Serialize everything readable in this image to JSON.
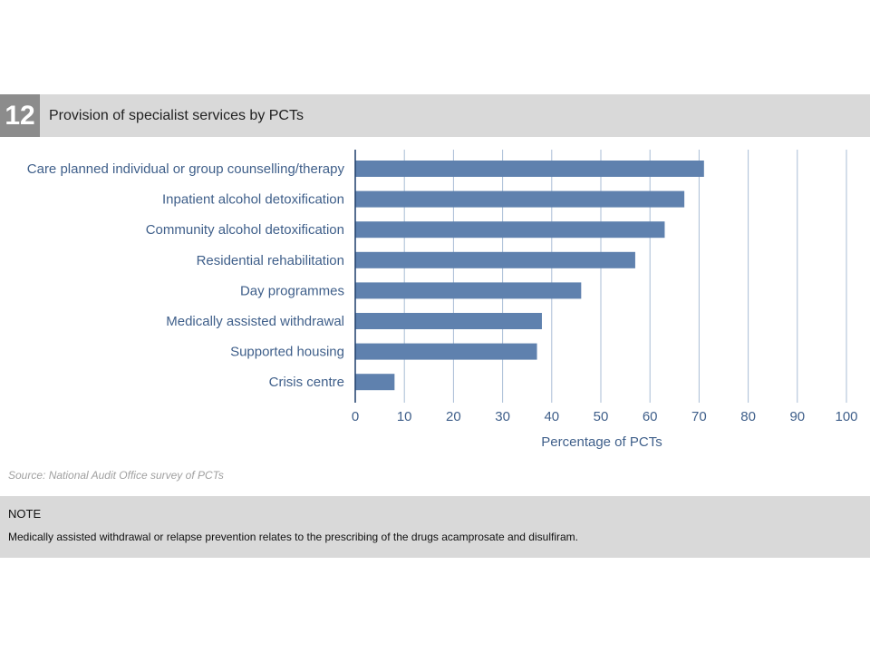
{
  "figure": {
    "number": "12",
    "title": "Provision of specialist services by PCTs",
    "source": "Source: National Audit Office survey of PCTs",
    "note_title": "NOTE",
    "note_text": "Medically assisted withdrawal or relapse prevention relates to the prescribing of the drugs acamprosate and disulfiram."
  },
  "colors": {
    "bar": "#5f81ae",
    "grid": "#a9bdd6",
    "text": "#3f5f8a",
    "band": "#d9d9d9"
  },
  "chart_data": {
    "type": "bar",
    "orientation": "horizontal",
    "categories": [
      "Care planned individual or group counselling/therapy",
      "Inpatient alcohol detoxification",
      "Community alcohol detoxification",
      "Residential rehabilitation",
      "Day programmes",
      "Medically assisted withdrawal",
      "Supported housing",
      "Crisis centre"
    ],
    "values": [
      71,
      67,
      63,
      57,
      46,
      38,
      37,
      8
    ],
    "xlabel": "Percentage of PCTs",
    "xlim": [
      0,
      100
    ],
    "xticks": [
      0,
      10,
      20,
      30,
      40,
      50,
      60,
      70,
      80,
      90,
      100
    ],
    "grid": true,
    "legend": "none"
  }
}
